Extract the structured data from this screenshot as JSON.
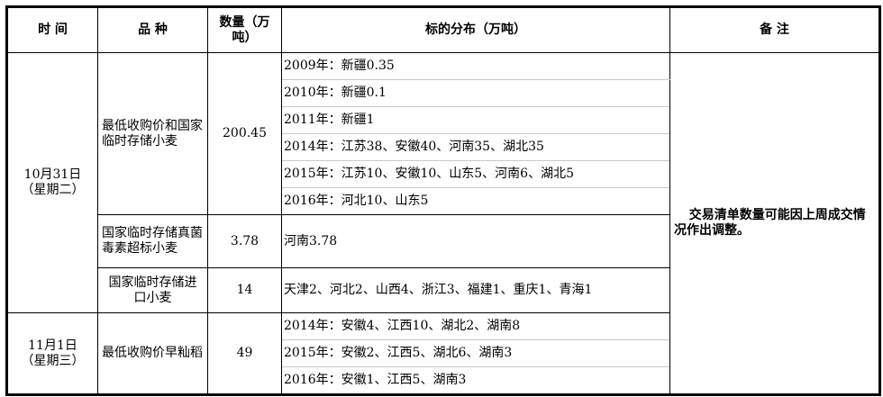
{
  "headers": {
    "time": "时 间",
    "variety": "品 种",
    "quantity": "数量（万吨）",
    "distribution": "标的分布（万吨）",
    "remark": "备 注"
  },
  "groups": [
    {
      "date": "10月31日",
      "weekday": "（星期二）",
      "items": [
        {
          "variety": "最低收购价和国家临时存储小麦",
          "quantity": "200.45",
          "distribution": [
            "2009年：新疆0.35",
            "2010年：新疆0.1",
            "2011年：新疆1",
            "2014年：江苏38、安徽40、河南35、湖北35",
            "2015年：江苏10、安徽10、山东5、河南6、湖北5",
            "2016年：河北10、山东5"
          ]
        },
        {
          "variety": "国家临时存储真菌毒素超标小麦",
          "quantity": "3.78",
          "distribution": [
            "河南3.78"
          ]
        },
        {
          "variety": "国家临时存储进口小麦",
          "quantity": "14",
          "distribution": [
            "天津2、河北2、山西4、浙江3、福建1、重庆1、青海1"
          ]
        }
      ]
    },
    {
      "date": "11月1日",
      "weekday": "（星期三）",
      "items": [
        {
          "variety": "最低收购价早籼稻",
          "quantity": "49",
          "distribution": [
            "2014年：安徽4、江西10、湖北2、湖南8",
            "2015年：安徽2、江西5、湖北6、湖南3",
            "2016年：安徽1、江西5、湖南3"
          ]
        }
      ]
    }
  ],
  "remark": "交易清单数量可能因上周成交情况作出调整。"
}
